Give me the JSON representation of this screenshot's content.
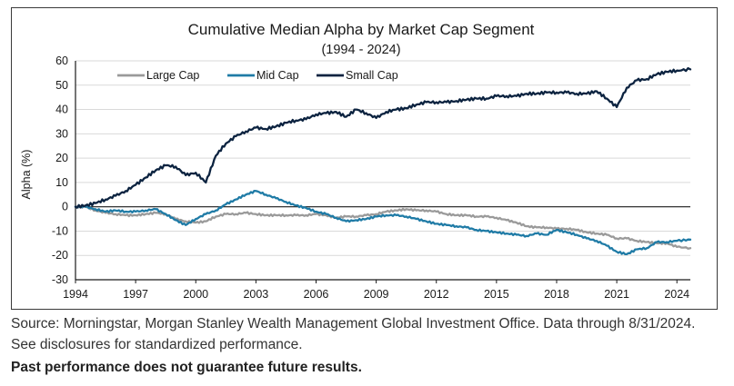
{
  "chart_data": {
    "type": "line",
    "title": "Cumulative Median Alpha by Market Cap Segment",
    "subtitle": "(1994 - 2024)",
    "ylabel": "Alpha (%)",
    "xlabel": "",
    "xlim": [
      1994,
      2024.67
    ],
    "ylim": [
      -30,
      60
    ],
    "x_ticks": [
      1994,
      1997,
      2000,
      2003,
      2006,
      2009,
      2012,
      2015,
      2018,
      2021,
      2024
    ],
    "y_ticks": [
      -30,
      -20,
      -10,
      0,
      10,
      20,
      30,
      40,
      50,
      60
    ],
    "grid": true,
    "legend_position": "top-left",
    "series": [
      {
        "name": "Large Cap",
        "color": "#9a9a9a",
        "x": [
          1994,
          1994.5,
          1995,
          1995.5,
          1996,
          1996.5,
          1997,
          1997.5,
          1998,
          1998.5,
          1999,
          1999.5,
          2000,
          2000.5,
          2001,
          2001.5,
          2002,
          2002.5,
          2003,
          2003.5,
          2004,
          2004.5,
          2005,
          2005.5,
          2006,
          2006.5,
          2007,
          2007.5,
          2008,
          2008.5,
          2009,
          2009.5,
          2010,
          2010.5,
          2011,
          2011.5,
          2012,
          2012.5,
          2013,
          2013.5,
          2014,
          2014.5,
          2015,
          2015.5,
          2016,
          2016.5,
          2017,
          2017.5,
          2018,
          2018.5,
          2019,
          2019.5,
          2020,
          2020.5,
          2021,
          2021.5,
          2022,
          2022.5,
          2023,
          2023.5,
          2024,
          2024.67
        ],
        "y": [
          0,
          0,
          -1.5,
          -2.5,
          -3,
          -3.5,
          -3.5,
          -3,
          -2.5,
          -3,
          -5,
          -6,
          -6.5,
          -6,
          -4,
          -3,
          -3,
          -2.5,
          -3,
          -3.5,
          -3.5,
          -3.5,
          -3.5,
          -3.5,
          -3,
          -3.5,
          -4.5,
          -4,
          -4,
          -3.5,
          -3,
          -2,
          -1.5,
          -1,
          -1.5,
          -1.5,
          -2,
          -3,
          -3.5,
          -3.5,
          -4,
          -4,
          -4.5,
          -5.5,
          -6.5,
          -8,
          -8.5,
          -8.5,
          -9,
          -9,
          -9.5,
          -10.5,
          -11,
          -11.5,
          -13,
          -13,
          -14,
          -14.5,
          -15,
          -15,
          -16.5,
          -17
        ]
      },
      {
        "name": "Mid Cap",
        "color": "#1f7ba6",
        "x": [
          1994,
          1994.5,
          1995,
          1995.5,
          1996,
          1996.5,
          1997,
          1997.5,
          1998,
          1998.5,
          1999,
          1999.5,
          2000,
          2000.5,
          2001,
          2001.5,
          2002,
          2002.5,
          2003,
          2003.5,
          2004,
          2004.5,
          2005,
          2005.5,
          2006,
          2006.5,
          2007,
          2007.5,
          2008,
          2008.5,
          2009,
          2009.5,
          2010,
          2010.5,
          2011,
          2011.5,
          2012,
          2012.5,
          2013,
          2013.5,
          2014,
          2014.5,
          2015,
          2015.5,
          2016,
          2016.5,
          2017,
          2017.5,
          2018,
          2018.5,
          2019,
          2019.5,
          2020,
          2020.5,
          2021,
          2021.5,
          2022,
          2022.5,
          2023,
          2023.5,
          2024,
          2024.67
        ],
        "y": [
          0,
          0,
          -1,
          -2,
          -1.5,
          -2,
          -2,
          -1.5,
          -1,
          -3,
          -5.5,
          -7.5,
          -5,
          -3,
          -1.5,
          1,
          3,
          5,
          6.5,
          5,
          3.5,
          2,
          0.5,
          -0.5,
          -2,
          -3,
          -4.5,
          -6,
          -5.5,
          -5,
          -4,
          -3.5,
          -3.5,
          -4,
          -5,
          -6,
          -7,
          -7.5,
          -8,
          -8.5,
          -9.5,
          -10,
          -10.5,
          -11,
          -11.5,
          -12,
          -11,
          -11.5,
          -9.5,
          -10.5,
          -11.5,
          -13,
          -14,
          -16,
          -18.5,
          -19.5,
          -17.5,
          -17,
          -14.5,
          -14.5,
          -14,
          -13.5
        ]
      },
      {
        "name": "Small Cap",
        "color": "#0c2340",
        "x": [
          1994,
          1994.5,
          1995,
          1995.5,
          1996,
          1996.5,
          1997,
          1997.5,
          1998,
          1998.5,
          1999,
          1999.5,
          2000,
          2000.5,
          2001,
          2001.5,
          2002,
          2002.5,
          2003,
          2003.5,
          2004,
          2004.5,
          2005,
          2005.5,
          2006,
          2006.5,
          2007,
          2007.5,
          2008,
          2008.5,
          2009,
          2009.5,
          2010,
          2010.5,
          2011,
          2011.5,
          2012,
          2012.5,
          2013,
          2013.5,
          2014,
          2014.5,
          2015,
          2015.5,
          2016,
          2016.5,
          2017,
          2017.5,
          2018,
          2018.5,
          2019,
          2019.5,
          2020,
          2020.5,
          2021,
          2021.5,
          2022,
          2022.5,
          2023,
          2023.5,
          2024,
          2024.67
        ],
        "y": [
          0,
          0.5,
          1.5,
          3,
          4.5,
          6.5,
          9,
          12,
          15,
          17,
          16.5,
          13,
          14,
          10,
          21,
          26,
          29,
          31,
          32.5,
          32,
          33,
          34.5,
          35.5,
          36,
          38,
          38.5,
          39,
          37,
          40,
          38.5,
          36.5,
          39,
          40,
          40.5,
          42,
          43,
          43,
          43,
          43.5,
          44,
          44.5,
          44.5,
          45.5,
          45.5,
          45.5,
          46.5,
          46.5,
          47,
          47,
          47,
          46.5,
          46.5,
          47.5,
          44.5,
          41,
          49,
          52,
          52.5,
          54.5,
          55.5,
          56,
          56.5
        ]
      }
    ]
  },
  "source": "Source: Morningstar, Morgan Stanley Wealth Management Global Investment Office. Data through 8/31/2024. See disclosures for standardized performance.",
  "disclaimer": "Past performance does not guarantee future results."
}
